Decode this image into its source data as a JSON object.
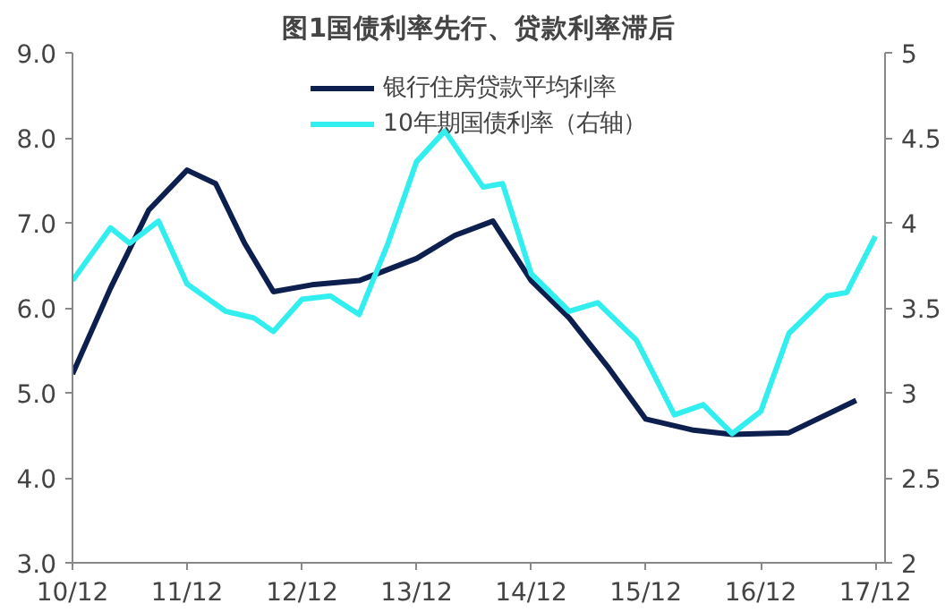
{
  "chart_data": {
    "type": "line",
    "title": "图1国债利率先行、贷款利率滞后",
    "legend": "top",
    "grid": false,
    "marker": "none",
    "line_style": "solid",
    "xlim": [
      "2010-12",
      "2018-01"
    ],
    "xticks": [
      {
        "value": "2010-12",
        "label": "10/12"
      },
      {
        "value": "2011-12",
        "label": "11/12"
      },
      {
        "value": "2012-12",
        "label": "12/12"
      },
      {
        "value": "2013-12",
        "label": "13/12"
      },
      {
        "value": "2014-12",
        "label": "14/12"
      },
      {
        "value": "2015-12",
        "label": "15/12"
      },
      {
        "value": "2016-12",
        "label": "16/12"
      },
      {
        "value": "2017-12",
        "label": "17/12"
      }
    ],
    "ylim": [
      3,
      9
    ],
    "yticks": [
      {
        "value": 3,
        "label": "3.0"
      },
      {
        "value": 4,
        "label": "4.0"
      },
      {
        "value": 5,
        "label": "5.0"
      },
      {
        "value": 6,
        "label": "6.0"
      },
      {
        "value": 7,
        "label": "7.0"
      },
      {
        "value": 8,
        "label": "8.0"
      },
      {
        "value": 9,
        "label": "9.0"
      }
    ],
    "y2lim": [
      2,
      5
    ],
    "y2ticks": [
      2,
      2.5,
      3,
      3.5,
      4,
      4.5,
      5
    ],
    "series": [
      {
        "name": "银行住房贷款平均利率",
        "color": "#0d1f4f",
        "x": [
          "2010-12",
          "2011-04",
          "2011-08",
          "2011-12",
          "2012-03",
          "2012-06",
          "2012-09",
          "2013-01",
          "2013-06",
          "2013-12",
          "2014-04",
          "2014-08",
          "2014-12",
          "2015-04",
          "2015-08",
          "2015-12",
          "2016-05",
          "2016-09",
          "2017-03",
          "2017-10"
        ],
        "values": [
          5.22,
          6.23,
          7.15,
          7.62,
          7.46,
          6.76,
          6.19,
          6.27,
          6.32,
          6.58,
          6.85,
          7.02,
          6.32,
          5.88,
          5.31,
          4.69,
          4.56,
          4.51,
          4.53,
          4.91
        ]
      },
      {
        "name": "10年期国债利率（右轴）",
        "color": "#33eeee",
        "axis": "y2",
        "x": [
          "2010-12",
          "2011-04",
          "2011-06",
          "2011-09",
          "2011-12",
          "2012-04",
          "2012-07",
          "2012-09",
          "2012-12",
          "2013-03",
          "2013-06",
          "2013-09",
          "2013-12",
          "2014-03",
          "2014-07",
          "2014-09",
          "2014-12",
          "2015-04",
          "2015-07",
          "2015-11",
          "2016-03",
          "2016-06",
          "2016-09",
          "2016-12",
          "2017-03",
          "2017-07",
          "2017-09",
          "2017-12"
        ],
        "values": [
          3.66,
          3.97,
          3.88,
          4.01,
          3.64,
          3.48,
          3.44,
          3.36,
          3.55,
          3.57,
          3.46,
          3.88,
          4.36,
          4.54,
          4.21,
          4.23,
          3.7,
          3.48,
          3.53,
          3.31,
          2.87,
          2.93,
          2.76,
          2.89,
          3.35,
          3.57,
          3.59,
          3.92
        ]
      }
    ]
  }
}
